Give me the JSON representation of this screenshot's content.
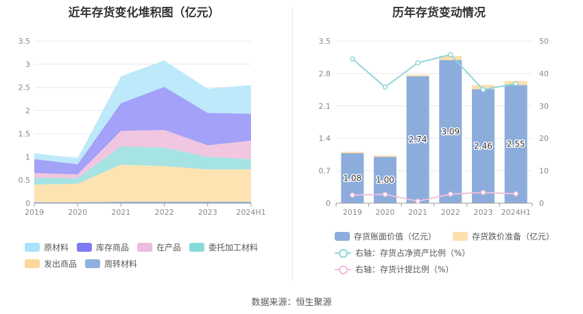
{
  "chart_data": [
    {
      "type": "area",
      "stacked": true,
      "title": "近年存货变化堆积图（亿元）",
      "categories": [
        "2019",
        "2020",
        "2021",
        "2022",
        "2023",
        "2024H1"
      ],
      "ylim": [
        0,
        3.5
      ],
      "yticks": [
        "0",
        "0.5",
        "1",
        "1.5",
        "2",
        "2.5",
        "3",
        "3.5"
      ],
      "grid": true,
      "legend_position": "bottom",
      "series": [
        {
          "name": "周转材料",
          "color": "#8fb0de",
          "values": [
            0.02,
            0.02,
            0.03,
            0.03,
            0.03,
            0.03
          ]
        },
        {
          "name": "发出商品",
          "color": "#fde3b2",
          "values": [
            0.38,
            0.4,
            0.8,
            0.77,
            0.7,
            0.7
          ]
        },
        {
          "name": "委托加工材料",
          "color": "#a6e3e3",
          "values": [
            0.15,
            0.12,
            0.4,
            0.4,
            0.27,
            0.22
          ]
        },
        {
          "name": "在产品",
          "color": "#f0c6e0",
          "values": [
            0.1,
            0.08,
            0.33,
            0.38,
            0.25,
            0.4
          ]
        },
        {
          "name": "库存商品",
          "color": "#a3a1f8",
          "values": [
            0.3,
            0.22,
            0.6,
            0.93,
            0.7,
            0.58
          ]
        },
        {
          "name": "原材料",
          "color": "#bde9fb",
          "values": [
            0.13,
            0.13,
            0.58,
            0.57,
            0.52,
            0.62
          ]
        }
      ],
      "legend": [
        {
          "name": "原材料",
          "color": "#a8e3fb"
        },
        {
          "name": "库存商品",
          "color": "#7d7bf2"
        },
        {
          "name": "在产品",
          "color": "#ecbcdc"
        },
        {
          "name": "委托加工材料",
          "color": "#88d9da"
        },
        {
          "name": "发出商品",
          "color": "#fdd79a"
        },
        {
          "name": "周转材料",
          "color": "#8fb0de"
        }
      ]
    },
    {
      "type": "bar",
      "stacked": true,
      "title": "历年存货变动情况",
      "categories": [
        "2019",
        "2020",
        "2021",
        "2022",
        "2023",
        "2024H1"
      ],
      "ylim": [
        0,
        3.5
      ],
      "yticks": [
        "0",
        "0.7",
        "1.4",
        "2.1",
        "2.8",
        "3.5"
      ],
      "y2lim": [
        0,
        50
      ],
      "y2ticks": [
        "0",
        "10",
        "20",
        "30",
        "40",
        "50"
      ],
      "grid": true,
      "legend_position": "bottom",
      "series": [
        {
          "name": "存货账面价值（亿元）",
          "type": "bar",
          "color": "#8caddc",
          "values": [
            1.08,
            1.0,
            2.74,
            3.09,
            2.46,
            2.55
          ],
          "labels": [
            "1.08",
            "1.00",
            "2.74",
            "3.09",
            "2.46",
            "2.55"
          ]
        },
        {
          "name": "存货跌价准备（亿元）",
          "type": "bar",
          "color": "#fddfae",
          "values": [
            0.03,
            0.03,
            0.03,
            0.09,
            0.09,
            0.09
          ]
        },
        {
          "name": "右轴：存货占净资产比例（%）",
          "type": "line",
          "axis": "right",
          "color": "#8fd6d9",
          "values": [
            44.5,
            35.8,
            43.3,
            45.8,
            35.0,
            36.9
          ]
        },
        {
          "name": "右轴：存货计提比例（%）",
          "type": "line",
          "axis": "right",
          "color": "#f0bedb",
          "values": [
            2.5,
            2.7,
            0.6,
            2.8,
            3.3,
            2.9
          ]
        }
      ]
    }
  ],
  "source": "数据来源：恒生聚源"
}
